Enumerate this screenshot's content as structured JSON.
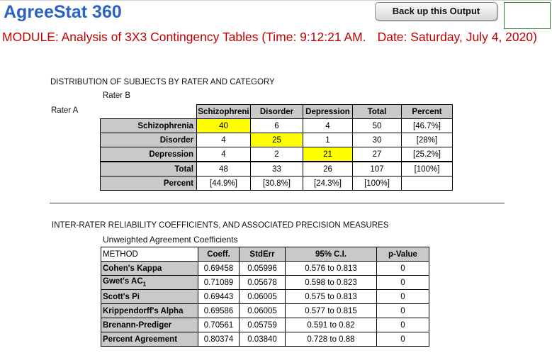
{
  "app": {
    "title": "AgreeStat 360"
  },
  "toolbar": {
    "backup_label": "Back up this Output"
  },
  "module": {
    "text": "MODULE: Analysis of 3X3 Contingency Tables (Time: 9:12:21 AM.",
    "date": "Date: Saturday, July 4, 2020)"
  },
  "distribution": {
    "heading": "DISTRIBUTION OF SUBJECTS BY RATER AND CATEGORY",
    "rater_b": "Rater B",
    "rater_a": "Rater A",
    "columns": [
      "Schizophreni",
      "Disorder",
      "Depression",
      "Total",
      "Percent"
    ],
    "rows": [
      {
        "label": "Schizophrenia",
        "cells": [
          "40",
          "6",
          "4",
          "50",
          "[46.7%]"
        ]
      },
      {
        "label": "Disorder",
        "cells": [
          "4",
          "25",
          "1",
          "30",
          "[28%]"
        ]
      },
      {
        "label": "Depression",
        "cells": [
          "4",
          "2",
          "21",
          "27",
          "[25.2%]"
        ]
      },
      {
        "label": "Total",
        "cells": [
          "48",
          "33",
          "26",
          "107",
          "[100%]"
        ]
      },
      {
        "label": "Percent",
        "cells": [
          "[44.9%]",
          "[30.8%]",
          "[24.3%]",
          "[100%]",
          ""
        ]
      }
    ],
    "highlight_color": "#ffff00"
  },
  "reliability": {
    "heading": "INTER-RATER RELIABILITY COEFFICIENTS, AND ASSOCIATED PRECISION MEASURES",
    "subheading": "Unweighted Agreement Coefficients",
    "columns": [
      "METHOD",
      "Coeff.",
      "StdErr",
      "95% C.I.",
      "p-Value"
    ],
    "rows": [
      {
        "method": "Cohen's Kappa",
        "coeff": "0.69458",
        "stderr": "0.05996",
        "ci": "0.576 to 0.813",
        "p": "0"
      },
      {
        "method": "Gwet's AC",
        "method_sub": "1",
        "coeff": "0.71089",
        "stderr": "0.05678",
        "ci": "0.598 to 0.823",
        "p": "0"
      },
      {
        "method": "Scott's Pi",
        "coeff": "0.69443",
        "stderr": "0.06005",
        "ci": "0.575 to 0.813",
        "p": "0"
      },
      {
        "method": "Krippendorff's Alpha",
        "coeff": "0.69586",
        "stderr": "0.06005",
        "ci": "0.577 to 0.815",
        "p": "0"
      },
      {
        "method": "Brenann-Prediger",
        "coeff": "0.70561",
        "stderr": "0.05759",
        "ci": "0.591 to 0.82",
        "p": "0"
      },
      {
        "method": "Percent Agreement",
        "coeff": "0.80374",
        "stderr": "0.03840",
        "ci": "0.728 to 0.88",
        "p": "0"
      }
    ]
  },
  "colors": {
    "title_blue": "#2a62c9",
    "module_red": "#c00000",
    "header_gray": "#c9c9c9"
  }
}
